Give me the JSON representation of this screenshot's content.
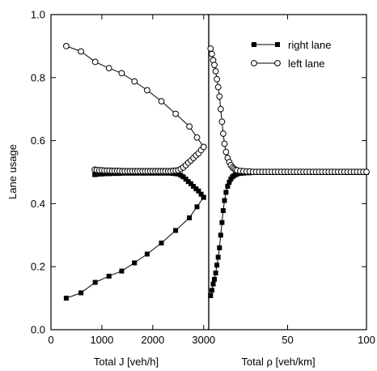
{
  "chart_data": [
    {
      "type": "line",
      "title": "",
      "xlabel": "Total J [veh/h]",
      "ylabel": "Lane usage",
      "xlim": [
        0,
        3100
      ],
      "ylim": [
        0.0,
        1.0
      ],
      "xticks": [
        0,
        1000,
        2000,
        3000
      ],
      "xtick_labels": [
        "0",
        "1000",
        "2000",
        "3000"
      ],
      "yticks": [
        0.0,
        0.2,
        0.4,
        0.6,
        0.8,
        1.0
      ],
      "ytick_labels": [
        "0.0",
        "0.2",
        "0.4",
        "0.6",
        "0.8",
        "1.0"
      ],
      "grid": false,
      "series": [
        {
          "name": "right lane",
          "marker": "filled-square",
          "x": [
            300,
            590,
            870,
            1140,
            1390,
            1640,
            1890,
            2170,
            2450,
            2720,
            2870,
            3000
          ],
          "y": [
            0.1,
            0.117,
            0.15,
            0.17,
            0.186,
            0.212,
            0.24,
            0.275,
            0.315,
            0.355,
            0.39,
            0.42
          ]
        },
        {
          "name": "right lane",
          "marker": "filled-square",
          "x": [
            860,
            900,
            950,
            1000,
            1050,
            1100,
            1150,
            1200,
            1250,
            1300,
            1350,
            1400,
            1450,
            1500,
            1550,
            1600,
            1650,
            1700,
            1750,
            1800,
            1850,
            1900,
            1950,
            2000,
            2050,
            2100,
            2150,
            2200,
            2250,
            2300,
            2350,
            2400,
            2450,
            2500,
            2550,
            2600,
            2650,
            2700,
            2750,
            2800,
            2850,
            2900,
            2950,
            3000
          ],
          "y": [
            0.492,
            0.493,
            0.494,
            0.494,
            0.495,
            0.495,
            0.495,
            0.496,
            0.496,
            0.496,
            0.496,
            0.497,
            0.497,
            0.497,
            0.497,
            0.497,
            0.497,
            0.497,
            0.497,
            0.497,
            0.497,
            0.497,
            0.497,
            0.497,
            0.497,
            0.497,
            0.497,
            0.497,
            0.497,
            0.497,
            0.497,
            0.496,
            0.495,
            0.494,
            0.49,
            0.485,
            0.478,
            0.47,
            0.463,
            0.455,
            0.447,
            0.44,
            0.43,
            0.42
          ]
        },
        {
          "name": "left lane",
          "marker": "open-circle",
          "x": [
            300,
            590,
            870,
            1140,
            1390,
            1640,
            1890,
            2170,
            2450,
            2720,
            2870,
            3000
          ],
          "y": [
            0.9,
            0.883,
            0.85,
            0.83,
            0.814,
            0.788,
            0.76,
            0.725,
            0.685,
            0.645,
            0.61,
            0.58
          ]
        },
        {
          "name": "left lane",
          "marker": "open-circle",
          "x": [
            860,
            900,
            950,
            1000,
            1050,
            1100,
            1150,
            1200,
            1250,
            1300,
            1350,
            1400,
            1450,
            1500,
            1550,
            1600,
            1650,
            1700,
            1750,
            1800,
            1850,
            1900,
            1950,
            2000,
            2050,
            2100,
            2150,
            2200,
            2250,
            2300,
            2350,
            2400,
            2450,
            2500,
            2550,
            2600,
            2650,
            2700,
            2750,
            2800,
            2850,
            2900,
            2950,
            3000
          ],
          "y": [
            0.508,
            0.507,
            0.506,
            0.506,
            0.505,
            0.505,
            0.505,
            0.504,
            0.504,
            0.504,
            0.504,
            0.503,
            0.503,
            0.503,
            0.503,
            0.503,
            0.503,
            0.503,
            0.503,
            0.503,
            0.503,
            0.503,
            0.503,
            0.503,
            0.503,
            0.503,
            0.503,
            0.503,
            0.503,
            0.503,
            0.503,
            0.504,
            0.505,
            0.506,
            0.51,
            0.515,
            0.522,
            0.53,
            0.537,
            0.545,
            0.553,
            0.56,
            0.57,
            0.58
          ]
        }
      ]
    },
    {
      "type": "line",
      "title": "",
      "xlabel": "Total ρ [veh/km]",
      "ylabel": "",
      "xlim": [
        0,
        100
      ],
      "ylim": [
        0.0,
        1.0
      ],
      "xticks": [
        50,
        100
      ],
      "xtick_labels": [
        "50",
        "100"
      ],
      "grid": false,
      "legend": {
        "position": "top-right",
        "entries": [
          "right lane",
          "left lane"
        ]
      },
      "series": [
        {
          "name": "right lane",
          "marker": "filled-square",
          "x": [
            1.2,
            2.0,
            2.8,
            3.6,
            4.4,
            5.2,
            6.0,
            6.8,
            7.6,
            8.4,
            9.2,
            10,
            11,
            12,
            13,
            14,
            15,
            16,
            17,
            18,
            20,
            22,
            24,
            26,
            28,
            30,
            32,
            34,
            36,
            38,
            40,
            42,
            44,
            46,
            48,
            50,
            52,
            54,
            56,
            58,
            60,
            62,
            64,
            66,
            68,
            70,
            72,
            74,
            76,
            78,
            80,
            82,
            84,
            86,
            88,
            90,
            92,
            94,
            96,
            98,
            100
          ],
          "y": [
            0.108,
            0.125,
            0.145,
            0.16,
            0.18,
            0.205,
            0.23,
            0.26,
            0.3,
            0.34,
            0.378,
            0.41,
            0.436,
            0.455,
            0.468,
            0.478,
            0.485,
            0.489,
            0.492,
            0.494,
            0.496,
            0.497,
            0.498,
            0.498,
            0.499,
            0.499,
            0.499,
            0.499,
            0.499,
            0.499,
            0.499,
            0.499,
            0.499,
            0.499,
            0.499,
            0.499,
            0.499,
            0.499,
            0.499,
            0.499,
            0.499,
            0.499,
            0.499,
            0.499,
            0.499,
            0.499,
            0.499,
            0.499,
            0.499,
            0.499,
            0.499,
            0.499,
            0.499,
            0.499,
            0.499,
            0.499,
            0.499,
            0.499,
            0.499,
            0.499,
            0.499
          ]
        },
        {
          "name": "left lane",
          "marker": "open-circle",
          "x": [
            1.2,
            2.0,
            2.8,
            3.6,
            4.4,
            5.2,
            6.0,
            6.8,
            7.6,
            8.4,
            9.2,
            10,
            11,
            12,
            13,
            14,
            15,
            16,
            17,
            18,
            20,
            22,
            24,
            26,
            28,
            30,
            32,
            34,
            36,
            38,
            40,
            42,
            44,
            46,
            48,
            50,
            52,
            54,
            56,
            58,
            60,
            62,
            64,
            66,
            68,
            70,
            72,
            74,
            76,
            78,
            80,
            82,
            84,
            86,
            88,
            90,
            92,
            94,
            96,
            98,
            100
          ],
          "y": [
            0.892,
            0.875,
            0.855,
            0.84,
            0.82,
            0.795,
            0.77,
            0.74,
            0.7,
            0.66,
            0.622,
            0.59,
            0.564,
            0.545,
            0.532,
            0.522,
            0.515,
            0.511,
            0.508,
            0.506,
            0.504,
            0.503,
            0.502,
            0.502,
            0.501,
            0.501,
            0.501,
            0.501,
            0.501,
            0.501,
            0.501,
            0.501,
            0.501,
            0.501,
            0.501,
            0.501,
            0.501,
            0.501,
            0.501,
            0.501,
            0.501,
            0.501,
            0.501,
            0.501,
            0.501,
            0.501,
            0.501,
            0.501,
            0.501,
            0.501,
            0.501,
            0.501,
            0.501,
            0.501,
            0.501,
            0.501,
            0.501,
            0.501,
            0.501,
            0.501,
            0.501
          ]
        }
      ]
    }
  ]
}
